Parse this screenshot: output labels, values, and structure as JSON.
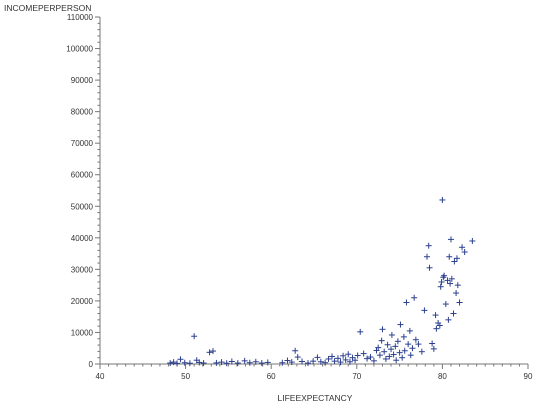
{
  "chart_data": {
    "type": "scatter",
    "xlabel": "LIFEEXPECTANCY",
    "ylabel": "INCOMEPERPERSON",
    "xlim": [
      40,
      90
    ],
    "ylim": [
      0,
      110000
    ],
    "x_ticks": [
      40,
      50,
      60,
      70,
      80,
      90
    ],
    "y_ticks": [
      0,
      10000,
      20000,
      30000,
      40000,
      50000,
      60000,
      70000,
      80000,
      90000,
      100000,
      110000
    ],
    "x_tick_labels": [
      "40",
      "50",
      "60",
      "70",
      "80",
      "90"
    ],
    "y_tick_labels": [
      "0",
      "10000",
      "20000",
      "30000",
      "40000",
      "50000",
      "60000",
      "70000",
      "80000",
      "90000",
      "100000",
      "110000"
    ],
    "marker": "+",
    "marker_color": "#2b3f8f",
    "grid": false,
    "points": [
      {
        "x": 48.2,
        "y": 300
      },
      {
        "x": 48.6,
        "y": 600
      },
      {
        "x": 49.0,
        "y": 200
      },
      {
        "x": 49.4,
        "y": 1500
      },
      {
        "x": 49.9,
        "y": 400
      },
      {
        "x": 50.5,
        "y": 250
      },
      {
        "x": 51.0,
        "y": 8800
      },
      {
        "x": 51.3,
        "y": 1200
      },
      {
        "x": 51.6,
        "y": 500
      },
      {
        "x": 52.1,
        "y": 300
      },
      {
        "x": 52.8,
        "y": 3700
      },
      {
        "x": 53.2,
        "y": 4100
      },
      {
        "x": 53.6,
        "y": 350
      },
      {
        "x": 54.2,
        "y": 600
      },
      {
        "x": 54.8,
        "y": 250
      },
      {
        "x": 55.4,
        "y": 800
      },
      {
        "x": 56.1,
        "y": 300
      },
      {
        "x": 56.9,
        "y": 1000
      },
      {
        "x": 57.5,
        "y": 400
      },
      {
        "x": 58.2,
        "y": 700
      },
      {
        "x": 58.9,
        "y": 300
      },
      {
        "x": 59.6,
        "y": 500
      },
      {
        "x": 61.3,
        "y": 400
      },
      {
        "x": 61.9,
        "y": 1100
      },
      {
        "x": 62.4,
        "y": 600
      },
      {
        "x": 62.8,
        "y": 4200
      },
      {
        "x": 63.1,
        "y": 2200
      },
      {
        "x": 63.6,
        "y": 800
      },
      {
        "x": 64.3,
        "y": 300
      },
      {
        "x": 64.9,
        "y": 900
      },
      {
        "x": 65.4,
        "y": 2100
      },
      {
        "x": 65.8,
        "y": 700
      },
      {
        "x": 66.3,
        "y": 400
      },
      {
        "x": 66.7,
        "y": 1600
      },
      {
        "x": 67.1,
        "y": 2400
      },
      {
        "x": 67.4,
        "y": 900
      },
      {
        "x": 67.8,
        "y": 1800
      },
      {
        "x": 68.1,
        "y": 600
      },
      {
        "x": 68.4,
        "y": 2600
      },
      {
        "x": 68.7,
        "y": 1300
      },
      {
        "x": 69.0,
        "y": 3100
      },
      {
        "x": 69.2,
        "y": 700
      },
      {
        "x": 69.5,
        "y": 2000
      },
      {
        "x": 69.8,
        "y": 1200
      },
      {
        "x": 70.1,
        "y": 2700
      },
      {
        "x": 70.4,
        "y": 10200
      },
      {
        "x": 70.8,
        "y": 3300
      },
      {
        "x": 71.2,
        "y": 1700
      },
      {
        "x": 71.6,
        "y": 2200
      },
      {
        "x": 72.0,
        "y": 1000
      },
      {
        "x": 72.3,
        "y": 4300
      },
      {
        "x": 72.5,
        "y": 5200
      },
      {
        "x": 72.7,
        "y": 2800
      },
      {
        "x": 72.9,
        "y": 7400
      },
      {
        "x": 73.0,
        "y": 11000
      },
      {
        "x": 73.2,
        "y": 3900
      },
      {
        "x": 73.4,
        "y": 1600
      },
      {
        "x": 73.6,
        "y": 6100
      },
      {
        "x": 73.8,
        "y": 2400
      },
      {
        "x": 74.0,
        "y": 4700
      },
      {
        "x": 74.1,
        "y": 9200
      },
      {
        "x": 74.3,
        "y": 3000
      },
      {
        "x": 74.5,
        "y": 5600
      },
      {
        "x": 74.6,
        "y": 1200
      },
      {
        "x": 74.8,
        "y": 7200
      },
      {
        "x": 75.0,
        "y": 3600
      },
      {
        "x": 75.1,
        "y": 12500
      },
      {
        "x": 75.3,
        "y": 2000
      },
      {
        "x": 75.5,
        "y": 8600
      },
      {
        "x": 75.6,
        "y": 4200
      },
      {
        "x": 75.8,
        "y": 19500
      },
      {
        "x": 76.0,
        "y": 6300
      },
      {
        "x": 76.2,
        "y": 10500
      },
      {
        "x": 76.3,
        "y": 2800
      },
      {
        "x": 76.5,
        "y": 5000
      },
      {
        "x": 76.7,
        "y": 21000
      },
      {
        "x": 76.9,
        "y": 7700
      },
      {
        "x": 77.2,
        "y": 6300
      },
      {
        "x": 77.6,
        "y": 3900
      },
      {
        "x": 77.9,
        "y": 17000
      },
      {
        "x": 78.2,
        "y": 34000
      },
      {
        "x": 78.4,
        "y": 37500
      },
      {
        "x": 78.5,
        "y": 30500
      },
      {
        "x": 78.8,
        "y": 6500
      },
      {
        "x": 79.0,
        "y": 4800
      },
      {
        "x": 79.2,
        "y": 15500
      },
      {
        "x": 79.3,
        "y": 11200
      },
      {
        "x": 79.5,
        "y": 13000
      },
      {
        "x": 79.7,
        "y": 12200
      },
      {
        "x": 79.8,
        "y": 24500
      },
      {
        "x": 79.9,
        "y": 26000
      },
      {
        "x": 80.0,
        "y": 52000
      },
      {
        "x": 80.1,
        "y": 27500
      },
      {
        "x": 80.2,
        "y": 28000
      },
      {
        "x": 80.4,
        "y": 19000
      },
      {
        "x": 80.6,
        "y": 26500
      },
      {
        "x": 80.7,
        "y": 14000
      },
      {
        "x": 80.8,
        "y": 34000
      },
      {
        "x": 80.9,
        "y": 25500
      },
      {
        "x": 81.0,
        "y": 39500
      },
      {
        "x": 81.1,
        "y": 27000
      },
      {
        "x": 81.3,
        "y": 16000
      },
      {
        "x": 81.4,
        "y": 32500
      },
      {
        "x": 81.6,
        "y": 22500
      },
      {
        "x": 81.7,
        "y": 33500
      },
      {
        "x": 81.8,
        "y": 25000
      },
      {
        "x": 82.0,
        "y": 19500
      },
      {
        "x": 82.3,
        "y": 37000
      },
      {
        "x": 82.6,
        "y": 35500
      },
      {
        "x": 83.5,
        "y": 39000
      }
    ]
  }
}
